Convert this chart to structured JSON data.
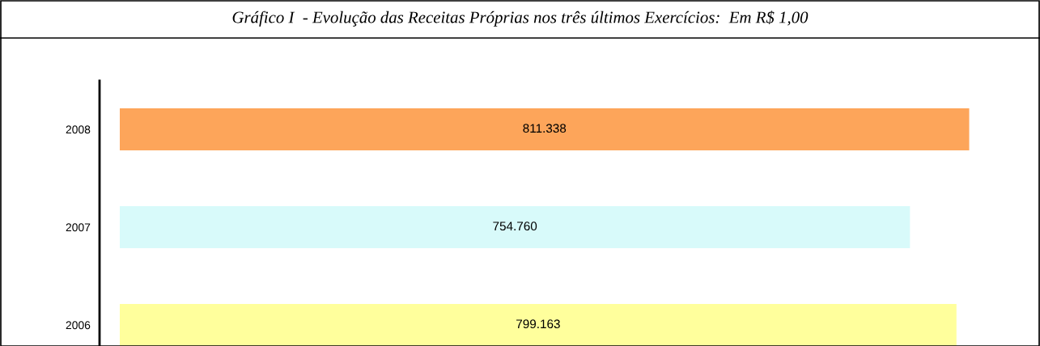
{
  "chart_data": {
    "type": "bar",
    "orientation": "horizontal",
    "title": "Gráfico I  - Evolução das Receitas Próprias nos três últimos Exercícios:  Em R$ 1,00",
    "categories": [
      "2008",
      "2007",
      "2006"
    ],
    "values": [
      811338,
      754760,
      799163
    ],
    "value_labels": [
      "811.338",
      "754.760",
      "799.163"
    ],
    "colors": [
      "#fda55a",
      "#d8fafa",
      "#ffff9c"
    ],
    "tick_labels": "y",
    "grid": false,
    "legend": false
  }
}
